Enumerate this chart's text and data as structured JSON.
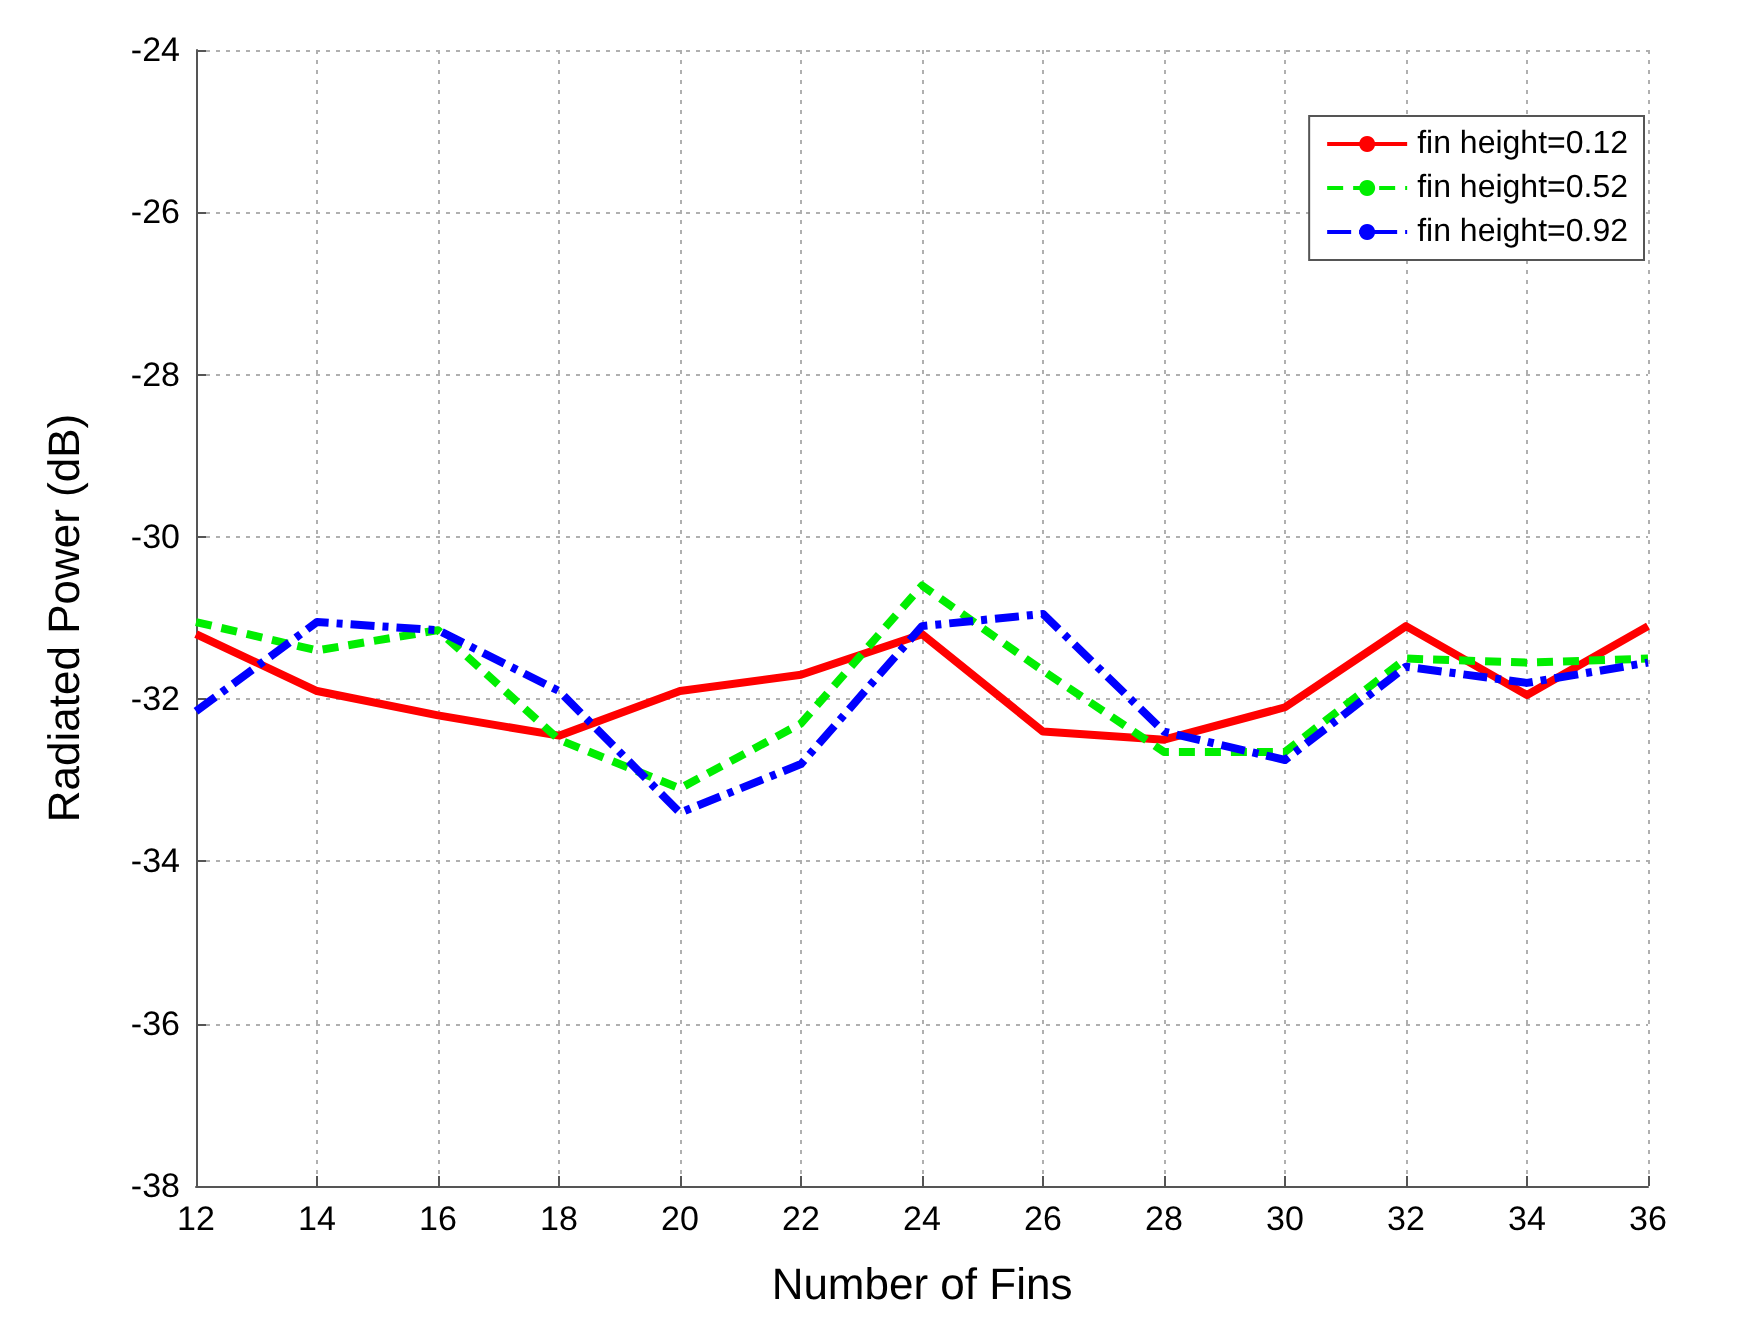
{
  "chart_data": {
    "type": "line",
    "xlabel": "Number of Fins",
    "ylabel": "Radiated Power (dB)",
    "x": [
      12,
      14,
      16,
      18,
      20,
      22,
      24,
      26,
      28,
      30,
      32,
      34,
      36
    ],
    "series": [
      {
        "name": "fin height=0.12",
        "color": "#ff0000",
        "line_style": "solid",
        "values": [
          -31.2,
          -31.9,
          -32.2,
          -32.45,
          -31.9,
          -31.7,
          -31.2,
          -32.4,
          -32.5,
          -32.1,
          -31.1,
          -31.95,
          -31.1
        ]
      },
      {
        "name": "fin height=0.52",
        "color": "#00ee00",
        "line_style": "dashed",
        "values": [
          -31.05,
          -31.4,
          -31.15,
          -32.5,
          -33.1,
          -32.3,
          -30.6,
          -31.65,
          -32.65,
          -32.65,
          -31.5,
          -31.55,
          -31.5
        ]
      },
      {
        "name": "fin height=0.92",
        "color": "#0000ff",
        "line_style": "dashdot",
        "values": [
          -32.15,
          -31.05,
          -31.15,
          -31.9,
          -33.4,
          -32.8,
          -31.1,
          -30.95,
          -32.4,
          -32.75,
          -31.6,
          -31.8,
          -31.55
        ]
      }
    ],
    "xlim": [
      12,
      36
    ],
    "xticks": [
      12,
      14,
      16,
      18,
      20,
      22,
      24,
      26,
      28,
      30,
      32,
      34,
      36
    ],
    "ylim": [
      -38,
      -24
    ],
    "yticks": [
      -38,
      -36,
      -34,
      -32,
      -30,
      -28,
      -26,
      -24
    ],
    "grid": true,
    "legend": "top right",
    "marker": "none"
  }
}
